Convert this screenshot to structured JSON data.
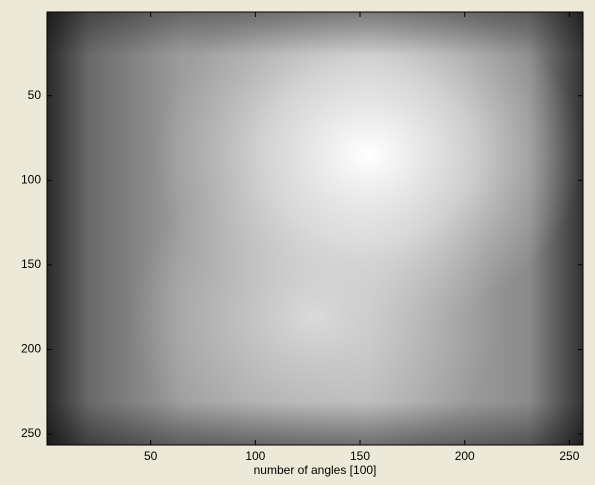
{
  "chart_data": {
    "type": "image",
    "xlabel": "number of angles [100]",
    "xlim": [
      0.5,
      256.5
    ],
    "ylim": [
      0.5,
      256.5
    ],
    "y_reversed": true,
    "xticks": [
      50,
      100,
      150,
      200,
      250
    ],
    "yticks": [
      50,
      100,
      150,
      200,
      250
    ]
  }
}
